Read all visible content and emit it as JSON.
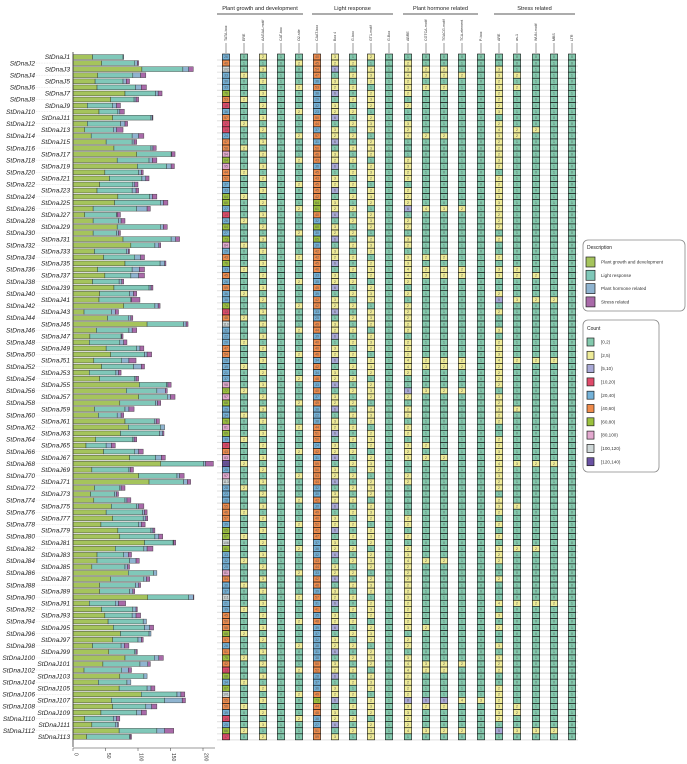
{
  "chart_data": [
    {
      "type": "bar",
      "orientation": "horizontal-stacked",
      "categories": [
        "StDnaJ1",
        "StDnaJ2",
        "StDnaJ3",
        "StDnaJ4",
        "StDnaJ5",
        "StDnaJ6",
        "StDnaJ7",
        "StDnaJ8",
        "StDnaJ9",
        "StDnaJ10",
        "StDnaJ11",
        "StDnaJ12",
        "StDnaJ13",
        "StDnaJ14",
        "StDnaJ15",
        "StDnaJ16",
        "StDnaJ17",
        "StDnaJ18",
        "StDnaJ19",
        "StDnaJ20",
        "StDnaJ21",
        "StDnaJ22",
        "StDnaJ23",
        "StDnaJ24",
        "StDnaJ25",
        "StDnaJ26",
        "StDnaJ27",
        "StDnaJ28",
        "StDnaJ29",
        "StDnaJ30",
        "StDnaJ31",
        "StDnaJ32",
        "StDnaJ33",
        "StDnaJ34",
        "StDnaJ35",
        "StDnaJ36",
        "StDnaJ37",
        "StDnaJ38",
        "StDnaJ39",
        "StDnaJ40",
        "StDnaJ41",
        "StDnaJ42",
        "StDnaJ43",
        "StDnaJ44",
        "StDnaJ45",
        "StDnaJ46",
        "StDnaJ47",
        "StDnaJ48",
        "StDnaJ49",
        "StDnaJ50",
        "StDnaJ51",
        "StDnaJ52",
        "StDnaJ53",
        "StDnaJ54",
        "StDnaJ55",
        "StDnaJ56",
        "StDnaJ57",
        "StDnaJ58",
        "StDnaJ59",
        "StDnaJ60",
        "StDnaJ61",
        "StDnaJ62",
        "StDnaJ63",
        "StDnaJ64",
        "StDnaJ65",
        "StDnaJ66",
        "StDnaJ67",
        "StDnaJ68",
        "StDnaJ69",
        "StDnaJ70",
        "StDnaJ71",
        "StDnaJ72",
        "StDnaJ73",
        "StDnaJ74",
        "StDnaJ75",
        "StDnaJ76",
        "StDnaJ77",
        "StDnaJ78",
        "StDnaJ79",
        "StDnaJ80",
        "StDnaJ81",
        "StDnaJ82",
        "StDnaJ83",
        "StDnaJ84",
        "StDnaJ85",
        "StDnaJ86",
        "StDnaJ87",
        "StDnaJ88",
        "StDnaJ89",
        "StDnaJ90",
        "StDnaJ91",
        "StDnaJ92",
        "StDnaJ93",
        "StDnaJ94",
        "StDnaJ95",
        "StDnaJ96",
        "StDnaJ97",
        "StDnaJ98",
        "StDnaJ99",
        "StDnaJ100",
        "StDnaJ101",
        "StDnaJ102",
        "StDnaJ103",
        "StDnaJ104",
        "StDnaJ105",
        "StDnaJ106",
        "StDnaJ107",
        "StDnaJ108",
        "StDnaJ109",
        "StDnaJ110",
        "StDnaJ111",
        "StDnaJ112",
        "StDnaJ113"
      ],
      "series": [
        {
          "name": "Plant growth and development",
          "color": "#a5c45c",
          "values": [
            30,
            44,
            106,
            38,
            34,
            37,
            80,
            58,
            22,
            40,
            61,
            22,
            18,
            28,
            51,
            63,
            98,
            68,
            99,
            49,
            56,
            41,
            37,
            69,
            64,
            31,
            18,
            31,
            68,
            31,
            77,
            89,
            33,
            47,
            80,
            38,
            49,
            30,
            63,
            41,
            40,
            78,
            17,
            53,
            114,
            36,
            26,
            25,
            51,
            58,
            32,
            44,
            25,
            41,
            102,
            82,
            101,
            72,
            33,
            39,
            80,
            85,
            73,
            35,
            20,
            47,
            87,
            135,
            29,
            101,
            117,
            33,
            27,
            32,
            59,
            51,
            61,
            43,
            69,
            72,
            110,
            65,
            37,
            37,
            29,
            85,
            58,
            41,
            41,
            115,
            25,
            44,
            49,
            54,
            62,
            73,
            61,
            30,
            55,
            80,
            46,
            17,
            72,
            39,
            71,
            105,
            59,
            61,
            43,
            18,
            29,
            71,
            21
          ]
        },
        {
          "name": "Light response",
          "color": "#80c8b9",
          "values": [
            47,
            51,
            63,
            54,
            43,
            59,
            47,
            36,
            39,
            29,
            59,
            51,
            44,
            63,
            40,
            57,
            53,
            49,
            45,
            52,
            50,
            51,
            54,
            49,
            71,
            67,
            49,
            39,
            67,
            36,
            74,
            37,
            49,
            48,
            54,
            53,
            40,
            41,
            54,
            46,
            49,
            48,
            42,
            32,
            56,
            50,
            48,
            47,
            47,
            52,
            43,
            49,
            41,
            54,
            42,
            47,
            44,
            55,
            47,
            29,
            45,
            50,
            60,
            57,
            31,
            48,
            40,
            66,
            57,
            59,
            53,
            39,
            37,
            48,
            39,
            56,
            47,
            58,
            51,
            54,
            44,
            44,
            41,
            50,
            51,
            39,
            51,
            55,
            46,
            63,
            40,
            48,
            42,
            54,
            48,
            44,
            39,
            44,
            40,
            45,
            57,
            58,
            37,
            44,
            43,
            55,
            82,
            51,
            55,
            44,
            36,
            58,
            66
          ]
        },
        {
          "name": "Plant hormone related",
          "color": "#8fb4d0",
          "values": [
            1,
            4,
            9,
            12,
            5,
            9,
            4,
            3,
            6,
            3,
            2,
            7,
            5,
            10,
            3,
            3,
            1,
            5,
            7,
            4,
            6,
            3,
            6,
            4,
            4,
            16,
            1,
            4,
            4,
            3,
            7,
            6,
            3,
            9,
            7,
            11,
            12,
            4,
            3,
            6,
            1,
            5,
            6,
            4,
            4,
            5,
            1,
            6,
            5,
            4,
            11,
            12,
            4,
            2,
            2,
            13,
            5,
            3,
            6,
            6,
            3,
            6,
            5,
            2,
            8,
            6,
            9,
            3,
            2,
            4,
            6,
            2,
            3,
            3,
            3,
            3,
            4,
            4,
            3,
            6,
            1,
            5,
            7,
            10,
            4,
            5,
            4,
            5,
            5,
            7,
            5,
            5,
            6,
            5,
            8,
            3,
            5,
            5,
            2,
            7,
            12,
            10,
            5,
            6,
            6,
            6,
            27,
            9,
            7,
            5,
            4,
            12,
            1
          ]
        },
        {
          "name": "Stress related",
          "color": "#a96aa9",
          "values": [
            0,
            2,
            7,
            8,
            5,
            8,
            6,
            4,
            6,
            7,
            1,
            4,
            10,
            8,
            4,
            5,
            5,
            7,
            5,
            3,
            5,
            5,
            4,
            7,
            7,
            5,
            5,
            6,
            6,
            3,
            6,
            3,
            2,
            6,
            2,
            8,
            9,
            3,
            3,
            5,
            13,
            3,
            5,
            3,
            3,
            7,
            2,
            5,
            6,
            7,
            11,
            5,
            4,
            4,
            5,
            3,
            7,
            5,
            8,
            4,
            5,
            0,
            2,
            4,
            6,
            7,
            6,
            12,
            5,
            7,
            5,
            6,
            3,
            6,
            8,
            4,
            3,
            6,
            3,
            6,
            3,
            9,
            5,
            5,
            3,
            0,
            5,
            3,
            3,
            1,
            11,
            2,
            7,
            0,
            6,
            0,
            3,
            7,
            2,
            7,
            4,
            5,
            0,
            0,
            6,
            6,
            5,
            8,
            8,
            5,
            1,
            14,
            2
          ]
        }
      ],
      "xlabel": "",
      "ylabel": "",
      "xlim": [
        0,
        210
      ],
      "xticks": [
        "0",
        "50",
        "100",
        "150",
        "200"
      ],
      "grid": false
    },
    {
      "type": "heatmap",
      "groups": [
        {
          "name": "Plant growth and development",
          "columns": [
            "TATA-box",
            "ERE",
            "AAGAA-motif",
            "CAT-box",
            "O2-site"
          ]
        },
        {
          "name": "Light response",
          "columns": [
            "CAAT-box",
            "Box 4",
            "G-box",
            "GT1-motif",
            "G-Box"
          ]
        },
        {
          "name": "Plant hormone related",
          "columns": [
            "ABRE",
            "CGTCA-motif",
            "TGACG-motif",
            "TCA-element",
            "P-box"
          ]
        },
        {
          "name": "Stress related",
          "columns": [
            "ARE",
            "as-1",
            "WUN-motif",
            "MBS",
            "LTR"
          ]
        }
      ],
      "rows": [
        "26 0 2 1 1 40 3 1 2 1 1 0 0 0 0 0 0 0 0 0",
        "40 1 1 0 2 45 2 2 1 1 2 1 0 1 0 1 0 0 1 0",
        "102 0 3 1 0 54 6 0 2 1 3 2 2 1 1 3 1 1 1 1",
        "33 2 1 1 1 47 1 2 3 1 4 3 2 2 1 3 2 1 1 1",
        "30 0 2 1 1 36 3 1 2 1 2 1 1 1 0 2 1 1 1 0",
        "33 1 1 0 2 53 2 2 1 1 3 2 2 1 1 3 2 1 1 1",
        "76 0 3 1 0 38 6 0 2 1 2 1 0 1 0 2 1 1 1 1",
        "53 2 1 1 1 29 1 2 3 1 1 1 0 1 0 2 1 0 1 0",
        "18 0 2 1 1 32 3 1 2 1 2 1 1 1 1 2 1 1 1 1",
        "36 1 1 0 2 23 2 2 1 1 1 1 0 1 0 3 1 1 1 1",
        "57 0 3 1 0 50 6 0 2 1 1 0 0 1 0 1 0 0 0 0",
        "17 2 1 1 1 44 1 2 3 1 3 1 1 1 1 2 1 0 1 0",
        "14 0 2 1 1 37 3 1 2 1 2 1 1 1 0 4 2 2 1 1",
        "24 1 1 0 2 57 2 2 1 1 4 2 2 1 1 3 2 1 1 1",
        "47 0 3 1 0 31 6 0 2 1 1 1 0 1 0 2 1 0 1 0",
        "58 2 1 1 1 50 1 2 3 1 1 1 0 1 0 2 1 1 1 0",
        "94 0 2 1 1 46 3 1 2 1 1 0 0 0 0 2 1 1 1 0",
        "64 1 1 0 2 43 2 2 1 1 2 1 1 1 0 3 1 1 1 1",
        "95 0 3 1 0 36 6 0 2 1 3 1 1 1 1 2 1 1 1 0",
        "44 2 1 1 1 45 1 2 3 1 2 1 0 1 0 1 1 0 1 0",
        "52 0 2 1 1 43 3 1 2 1 2 1 1 1 1 2 1 1 1 0",
        "37 1 1 0 2 45 2 2 1 1 1 1 0 1 0 2 1 1 1 0",
        "33 0 3 1 0 45 6 0 2 1 2 1 1 1 1 2 1 0 1 0",
        "64 2 1 1 1 42 1 2 3 1 2 1 0 1 0 3 1 1 1 1",
        "60 0 2 1 1 64 3 1 2 1 2 1 0 1 0 3 1 1 1 1",
        "27 1 1 0 2 61 2 2 1 1 6 4 3 2 1 2 1 1 1 0",
        "14 0 3 1 0 40 6 0 2 1 1 0 0 0 0 2 1 1 1 0",
        "26 2 1 1 1 32 1 2 3 1 2 1 0 1 0 2 1 1 1 1",
        "64 0 2 1 1 60 3 1 2 1 2 1 0 1 0 2 1 1 1 1",
        "27 1 1 0 2 30 2 2 1 1 1 1 0 1 0 1 1 0 1 0",
        "73 0 3 1 0 65 6 0 2 1 3 1 1 1 1 2 1 1 1 1",
        "84 2 1 1 1 30 1 2 3 1 2 1 1 1 1 1 1 0 1 0",
        "29 0 2 1 1 42 3 1 2 1 1 1 0 1 0 1 0 0 1 0",
        "43 1 1 0 2 42 2 2 1 1 3 2 2 1 1 2 1 1 1 1",
        "76 0 3 1 0 45 6 0 2 1 3 1 1 1 1 1 0 0 1 0",
        "33 2 1 1 1 46 1 2 3 1 4 2 2 2 1 3 2 1 1 1",
        "45 0 2 1 1 33 3 1 2 1 4 3 2 2 1 3 2 2 1 1",
        "26 1 1 0 2 35 2 2 1 1 2 1 0 1 0 1 1 0 1 0",
        "59 0 3 1 0 45 6 0 2 1 1 1 0 1 0 1 1 0 1 0",
        "36 2 1 1 1 39 1 2 3 1 2 1 1 1 1 2 1 1 1 0",
        "36 0 2 1 1 42 3 1 2 1 1 0 0 0 0 5 3 2 2 1",
        "74 1 1 0 2 42 2 2 1 1 2 1 1 1 0 1 1 0 1 0",
        "13 0 3 1 0 33 6 0 2 1 2 1 1 1 1 2 1 1 1 0",
        "48 2 1 1 1 25 1 2 3 1 2 1 0 1 0 1 1 0 1 0",
        "110 0 2 1 1 49 3 1 2 1 2 1 0 1 0 1 1 0 1 0",
        "32 1 1 0 2 44 2 2 1 1 2 1 1 1 0 3 1 1 1 1",
        "22 0 3 1 0 39 6 0 2 1 1 0 0 0 0 1 0 0 1 0",
        "20 2 1 1 1 40 1 2 3 1 2 1 1 1 1 2 1 1 1 0",
        "47 0 2 1 1 40 3 1 2 1 2 1 1 1 0 2 1 1 1 1",
        "54 1 1 0 2 46 2 2 1 1 2 1 0 1 0 3 1 1 1 1",
        "28 0 3 1 0 34 6 0 2 1 4 2 2 2 1 4 2 2 2 1",
        "39 2 1 1 1 42 1 2 3 1 4 3 2 2 1 2 1 1 1 0",
        "21 0 2 1 1 34 3 1 2 1 2 1 0 1 0 2 1 0 1 0",
        "37 1 1 0 2 48 2 2 1 1 1 0 0 1 0 2 1 0 1 0",
        "98 0 3 1 0 33 6 0 2 1 1 0 0 1 0 2 1 1 1 0",
        "77 2 1 1 1 40 1 2 3 1 5 3 2 2 1 1 1 0 1 0",
        "97 0 2 1 1 37 3 1 2 1 2 1 1 1 0 3 1 1 1 1",
        "68 1 1 0 2 49 2 2 1 1 1 1 0 1 0 2 1 1 1 0",
        "29 0 3 1 0 38 6 0 2 1 2 1 1 1 1 3 2 1 1 1",
        "34 2 1 1 1 22 1 2 3 1 2 1 1 1 1 2 1 0 1 0",
        "76 0 2 1 1 38 3 1 2 1 1 1 0 1 0 2 1 1 1 0",
        "81 1 1 0 2 44 2 2 1 1 2 1 1 1 1 0 0 0 0 0",
        "69 0 3 1 0 51 6 0 2 1 2 1 1 1 0 1 0 0 1 0",
        "30 2 1 1 1 50 1 2 3 1 1 0 0 1 0 2 1 0 1 0",
        "16 0 2 1 1 24 3 1 2 1 3 2 1 1 1 2 1 1 1 1",
        "43 1 1 0 2 42 2 2 1 1 2 1 1 1 1 3 1 1 1 1",
        "83 0 3 1 0 31 6 0 2 1 3 2 2 1 1 2 1 1 1 1",
        "130 2 1 1 1 59 1 2 3 1 1 1 0 1 0 4 3 2 2 1",
        "25 0 2 1 1 50 3 1 2 1 1 0 0 1 0 2 1 1 1 0",
        "97 1 1 0 2 53 2 2 1 1 2 1 0 1 0 3 1 1 1 1",
        "113 0 3 1 0 44 6 0 2 1 2 1 1 1 1 2 1 1 1 0",
        "28 2 1 1 1 32 1 2 3 1 1 0 0 1 0 2 1 1 1 1",
        "23 0 2 1 1 30 3 1 2 1 1 1 0 1 0 1 1 0 1 0",
        "28 1 1 0 2 42 2 2 1 1 1 1 0 1 0 2 1 1 1 1",
        "55 0 3 1 0 30 6 0 2 1 1 1 0 1 0 3 2 1 1 1",
        "46 2 1 1 1 49 1 2 3 1 1 1 0 1 0 2 1 0 1 0",
        "57 0 2 1 1 40 3 1 2 1 2 1 0 1 0 1 1 0 1 0",
        "39 1 1 0 2 52 2 2 1 1 2 1 0 1 0 2 1 1 1 1",
        "65 0 3 1 0 42 6 0 2 1 1 1 0 1 0 1 1 0 1 0",
        "67 2 1 1 1 47 1 2 3 1 2 1 1 1 1 2 1 1 1 1",
        "106 0 2 1 1 37 3 1 2 1 1 0 0 0 0 1 1 0 1 0",
        "61 1 1 0 2 38 2 2 1 1 2 1 1 1 0 3 2 2 1 1",
        "33 0 3 1 0 32 6 0 2 1 3 1 1 1 1 2 1 1 1 0",
        "32 2 1 1 1 43 1 2 3 1 4 2 2 1 1 2 1 1 1 0",
        "25 0 2 1 1 44 3 1 2 1 2 1 0 1 0 1 1 0 1 0",
        "81 1 1 0 2 33 2 2 1 1 2 1 1 1 0 0 0 0 0 0",
        "54 0 3 1 0 42 6 0 2 1 2 1 0 1 0 2 1 1 1 0",
        "36 2 1 1 1 48 1 2 3 1 2 1 1 1 0 1 1 0 1 0",
        "37 0 2 1 1 39 3 1 2 1 2 1 1 1 0 1 1 0 1 0",
        "111 1 1 0 2 57 2 2 1 1 3 1 1 1 1 1 0 0 0 0",
        "21 0 3 1 0 31 6 0 2 1 2 1 1 1 0 4 2 2 2 1",
        "39 2 1 1 1 41 1 2 3 1 2 1 1 1 0 1 0 0 1 0",
        "45 0 2 1 1 35 3 1 2 1 2 1 1 1 1 3 1 1 1 1",
        "50 1 1 0 2 48 2 2 1 1 2 1 1 1 0 0 0 0 0 0",
        "58 0 3 1 0 39 6 0 2 1 3 2 1 1 1 2 1 1 1 1",
        "68 2 1 1 1 37 1 2 3 1 1 1 0 1 0 0 0 0 0 0",
        "57 0 2 1 1 32 3 1 2 1 2 1 1 1 0 1 1 0 1 0",
        "26 1 1 0 2 38 2 2 1 1 2 1 1 1 0 3 1 1 1 1",
        "51 0 3 1 0 31 6 0 2 1 1 0 0 1 0 1 0 0 1 0",
        "75 2 1 1 1 38 1 2 3 1 3 1 1 1 1 3 1 1 1 1",
        "42 0 2 1 1 50 3 1 2 1 4 3 2 2 1 2 1 0 1 0",
        "13 1 1 0 2 52 2 2 1 1 4 2 2 1 1 2 1 1 1 0",
        "68 0 3 1 0 28 6 0 2 1 2 1 1 1 0 0 0 0 0 0",
        "34 2 1 1 1 37 1 2 3 1 2 1 1 1 1 0 0 0 0 0",
        "67 0 2 1 1 36 3 1 2 1 2 1 1 1 1 2 1 1 1 1",
        "101 1 1 0 2 49 2 2 1 1 2 1 1 1 1 2 1 1 1 1",
        "55 0 3 1 0 73 6 0 2 1 8 6 6 4 3 2 1 1 1 0",
        "56 2 1 1 1 44 1 2 3 1 3 2 2 1 1 3 2 1 1 1",
        "39 0 2 1 1 48 3 1 2 1 3 1 1 1 1 3 2 1 1 1",
        "14 1 1 0 2 38 2 2 1 1 2 1 1 1 0 2 1 1 1 0",
        "25 0 3 1 0 27 6 0 2 1 2 1 0 1 0 1 0 0 0 0",
        "66 2 1 1 1 51 1 2 3 1 4 3 2 2 1 5 3 3 2 1",
        "17 0 2 1 1 59 3 1 2 1 1 0 0 0 0 1 0 0 1 0"
      ]
    }
  ],
  "legend_description": {
    "title": "Description",
    "items": [
      {
        "label": "Plant growth and development",
        "color": "#a5c45c"
      },
      {
        "label": "Light response",
        "color": "#80c8b9"
      },
      {
        "label": "Plant hormone related",
        "color": "#8fb4d0"
      },
      {
        "label": "Stress related",
        "color": "#a96aa9"
      }
    ]
  },
  "legend_count": {
    "title": "Count",
    "items": [
      {
        "label": "[0,2)",
        "min": 0,
        "max": 2,
        "color": "#83c9ad"
      },
      {
        "label": "[2,5)",
        "min": 2,
        "max": 5,
        "color": "#eeeb98"
      },
      {
        "label": "[5,10)",
        "min": 5,
        "max": 10,
        "color": "#a9a9d6"
      },
      {
        "label": "[10,20)",
        "min": 10,
        "max": 20,
        "color": "#e04a6a"
      },
      {
        "label": "[20,40)",
        "min": 20,
        "max": 40,
        "color": "#74b2d8"
      },
      {
        "label": "[40,60)",
        "min": 40,
        "max": 60,
        "color": "#f08c4c"
      },
      {
        "label": "[60,80)",
        "min": 60,
        "max": 80,
        "color": "#9cc23e"
      },
      {
        "label": "[80,100)",
        "min": 80,
        "max": 100,
        "color": "#e3a9cf"
      },
      {
        "label": "[100,120)",
        "min": 100,
        "max": 120,
        "color": "#cfd8d8"
      },
      {
        "label": "[120,140)",
        "min": 120,
        "max": 140,
        "color": "#6a52a3"
      }
    ]
  }
}
